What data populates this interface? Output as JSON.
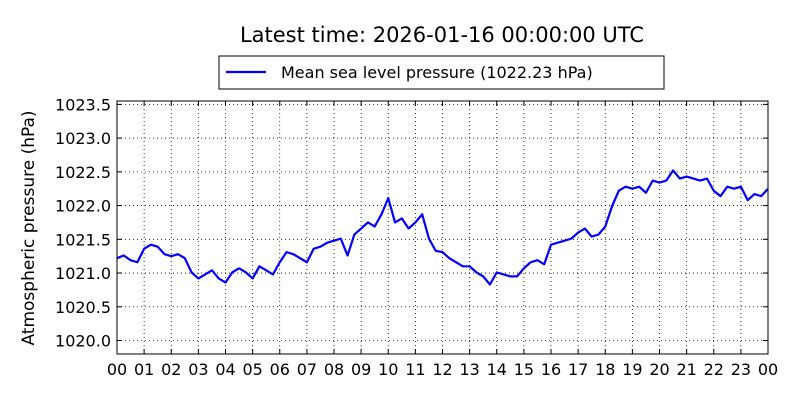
{
  "chart_data": {
    "type": "line",
    "title": "Latest time: 2026-01-16 00:00:00 UTC",
    "ylabel": "Atmospheric pressure (hPa)",
    "x": [
      0,
      0.25,
      0.5,
      0.75,
      1,
      1.25,
      1.5,
      1.75,
      2,
      2.25,
      2.5,
      2.75,
      3,
      3.25,
      3.5,
      3.75,
      4,
      4.25,
      4.5,
      4.75,
      5,
      5.25,
      5.5,
      5.75,
      6,
      6.25,
      6.5,
      6.75,
      7,
      7.25,
      7.5,
      7.75,
      8,
      8.25,
      8.5,
      8.75,
      9,
      9.25,
      9.5,
      9.75,
      10,
      10.25,
      10.5,
      10.75,
      11,
      11.25,
      11.5,
      11.75,
      12,
      12.25,
      12.5,
      12.75,
      13,
      13.25,
      13.5,
      13.75,
      14,
      14.25,
      14.5,
      14.75,
      15,
      15.25,
      15.5,
      15.75,
      16,
      16.25,
      16.5,
      16.75,
      17,
      17.25,
      17.5,
      17.75,
      18,
      18.25,
      18.5,
      18.75,
      19,
      19.25,
      19.5,
      19.75,
      20,
      20.25,
      20.5,
      20.75,
      21,
      21.25,
      21.5,
      21.75,
      22,
      22.25,
      22.5,
      22.75,
      23,
      23.25,
      23.5,
      23.75,
      24
    ],
    "series": [
      {
        "name": "Mean sea level pressure (1022.23 hPa)",
        "color": "#0000ff",
        "values": [
          1021.22,
          1021.26,
          1021.19,
          1021.16,
          1021.36,
          1021.42,
          1021.39,
          1021.28,
          1021.25,
          1021.28,
          1021.22,
          1021.01,
          1020.92,
          1020.98,
          1021.04,
          1020.92,
          1020.86,
          1021.01,
          1021.07,
          1021.01,
          1020.92,
          1021.1,
          1021.04,
          1020.98,
          1021.16,
          1021.31,
          1021.28,
          1021.22,
          1021.16,
          1021.36,
          1021.39,
          1021.45,
          1021.48,
          1021.51,
          1021.26,
          1021.57,
          1021.66,
          1021.75,
          1021.69,
          1021.87,
          1022.11,
          1021.75,
          1021.81,
          1021.66,
          1021.75,
          1021.87,
          1021.51,
          1021.33,
          1021.31,
          1021.22,
          1021.16,
          1021.1,
          1021.1,
          1021.01,
          1020.95,
          1020.83,
          1021.01,
          1020.98,
          1020.95,
          1020.95,
          1021.07,
          1021.16,
          1021.19,
          1021.13,
          1021.42,
          1021.45,
          1021.48,
          1021.51,
          1021.6,
          1021.66,
          1021.54,
          1021.57,
          1021.69,
          1021.99,
          1022.22,
          1022.28,
          1022.25,
          1022.28,
          1022.19,
          1022.37,
          1022.34,
          1022.37,
          1022.52,
          1022.4,
          1022.43,
          1022.4,
          1022.37,
          1022.4,
          1022.22,
          1022.14,
          1022.28,
          1022.25,
          1022.28,
          1022.08,
          1022.17,
          1022.14,
          1022.25
        ]
      }
    ],
    "xlim": [
      0,
      24
    ],
    "xticks": [
      {
        "value": 0,
        "label": "00"
      },
      {
        "value": 1,
        "label": "01"
      },
      {
        "value": 2,
        "label": "02"
      },
      {
        "value": 3,
        "label": "03"
      },
      {
        "value": 4,
        "label": "04"
      },
      {
        "value": 5,
        "label": "05"
      },
      {
        "value": 6,
        "label": "06"
      },
      {
        "value": 7,
        "label": "07"
      },
      {
        "value": 8,
        "label": "08"
      },
      {
        "value": 9,
        "label": "09"
      },
      {
        "value": 10,
        "label": "10"
      },
      {
        "value": 11,
        "label": "11"
      },
      {
        "value": 12,
        "label": "12"
      },
      {
        "value": 13,
        "label": "13"
      },
      {
        "value": 14,
        "label": "14"
      },
      {
        "value": 15,
        "label": "15"
      },
      {
        "value": 16,
        "label": "16"
      },
      {
        "value": 17,
        "label": "17"
      },
      {
        "value": 18,
        "label": "18"
      },
      {
        "value": 19,
        "label": "19"
      },
      {
        "value": 20,
        "label": "20"
      },
      {
        "value": 21,
        "label": "21"
      },
      {
        "value": 22,
        "label": "22"
      },
      {
        "value": 23,
        "label": "23"
      },
      {
        "value": 24,
        "label": "00"
      }
    ],
    "ylim": [
      1019.8,
      1023.55
    ],
    "yticks": [
      {
        "value": 1020,
        "label": "1020.0"
      },
      1020.5,
      {
        "value": 1021,
        "label": "1021.0"
      },
      1021.5,
      {
        "value": 1022,
        "label": "1022.0"
      },
      1022.5,
      {
        "value": 1023,
        "label": "1023.0"
      },
      1023.5
    ],
    "grid": true,
    "legend": "top"
  }
}
